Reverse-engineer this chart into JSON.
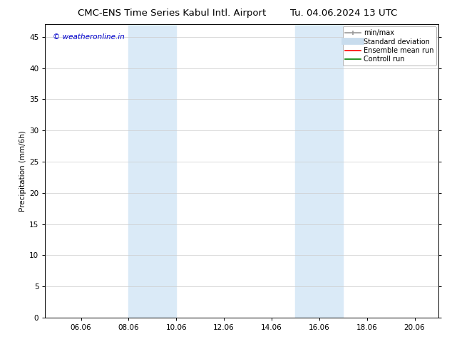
{
  "title": "CMC-ENS Time Series Kabul Intl. Airport",
  "title_right": "Tu. 04.06.2024 13 UTC",
  "ylabel": "Precipitation (mm/6h)",
  "watermark": "© weatheronline.in",
  "watermark_color": "#0000cc",
  "xlim": [
    4.5,
    21.0
  ],
  "ylim": [
    0,
    47
  ],
  "yticks": [
    0,
    5,
    10,
    15,
    20,
    25,
    30,
    35,
    40,
    45
  ],
  "xtick_labels": [
    "06.06",
    "08.06",
    "10.06",
    "12.06",
    "14.06",
    "16.06",
    "18.06",
    "20.06"
  ],
  "xtick_positions": [
    6.0,
    8.0,
    10.0,
    12.0,
    14.0,
    16.0,
    18.0,
    20.0
  ],
  "shaded_regions": [
    {
      "xmin": 8.0,
      "xmax": 10.0,
      "color": "#daeaf7"
    },
    {
      "xmin": 15.0,
      "xmax": 17.0,
      "color": "#daeaf7"
    }
  ],
  "legend_items": [
    {
      "label": "min/max",
      "color": "#999999",
      "lw": 1.2,
      "style": "errorbar"
    },
    {
      "label": "Standard deviation",
      "color": "#c8dced",
      "lw": 7,
      "style": "line"
    },
    {
      "label": "Ensemble mean run",
      "color": "#ff0000",
      "lw": 1.2,
      "style": "line"
    },
    {
      "label": "Controll run",
      "color": "#008000",
      "lw": 1.2,
      "style": "line"
    }
  ],
  "bg_color": "#ffffff",
  "grid_color": "#cccccc",
  "font_size": 7.5,
  "title_font_size": 9.5
}
